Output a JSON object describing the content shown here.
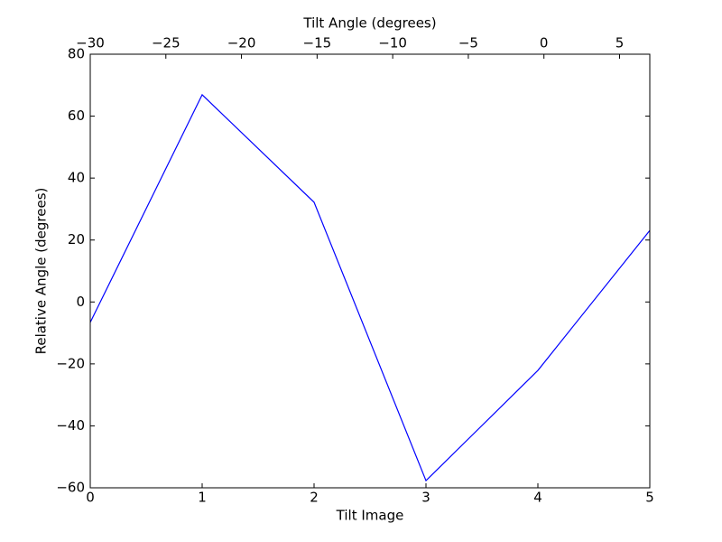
{
  "chart_data": {
    "type": "line",
    "xlabel": "Tilt Image",
    "ylabel": "Relative Angle (degrees)",
    "x": [
      0,
      1,
      2,
      3,
      4,
      5
    ],
    "series": [
      {
        "color": "#0000ff",
        "values": [
          -6.6,
          66.9,
          32.2,
          -57.7,
          -22.1,
          23.1
        ]
      }
    ],
    "xlim": [
      0,
      5
    ],
    "xticks": [
      0,
      1,
      2,
      3,
      4,
      5
    ],
    "ylim": [
      -60,
      80
    ],
    "yticks": [
      {
        "value": -60,
        "label": "−60"
      },
      {
        "value": -40,
        "label": "−40"
      },
      {
        "value": -20,
        "label": "−20"
      },
      0,
      20,
      40,
      60,
      80
    ],
    "grid": false,
    "top_axis": {
      "label": "Tilt Angle (degrees)",
      "xlim": [
        -30,
        7
      ],
      "xticks": [
        {
          "value": -30,
          "label": "−30"
        },
        {
          "value": -25,
          "label": "−25"
        },
        {
          "value": -20,
          "label": "−20"
        },
        {
          "value": -15,
          "label": "−15"
        },
        {
          "value": -10,
          "label": "−10"
        },
        {
          "value": -5,
          "label": "−5"
        },
        0,
        5
      ]
    }
  }
}
